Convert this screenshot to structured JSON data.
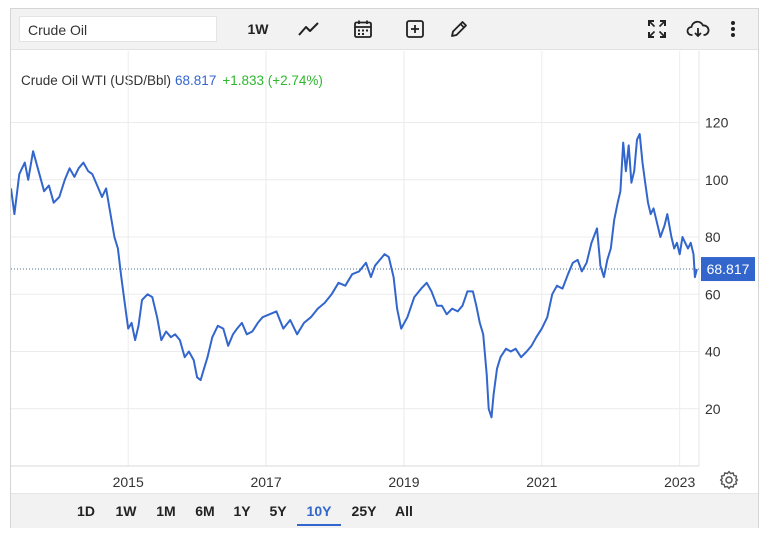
{
  "toolbar": {
    "symbol_value": "Crude Oil",
    "interval_label": "1W",
    "icons": [
      "line-chart-icon",
      "calendar-icon",
      "add-indicator-icon",
      "draw-pencil-icon",
      "fullscreen-icon",
      "cloud-download-icon",
      "more-vertical-icon"
    ]
  },
  "legend": {
    "name": "Crude Oil WTI (USD/Bbl)",
    "price": "68.817",
    "change": "+1.833 (+2.74%)"
  },
  "price_tag": "68.817",
  "range_buttons": [
    "1D",
    "1W",
    "1M",
    "6M",
    "1Y",
    "5Y",
    "10Y",
    "25Y",
    "All"
  ],
  "active_range": "10Y",
  "colors": {
    "line": "#3366cc",
    "positive": "#2eb82e",
    "accent": "#3366cc"
  },
  "chart_data": {
    "type": "line",
    "title": "Crude Oil WTI (USD/Bbl)",
    "xlabel": "",
    "ylabel": "",
    "x_range": [
      2013.3,
      2023.28
    ],
    "ylim": [
      0,
      145
    ],
    "y_ticks": [
      20,
      40,
      60,
      80,
      100,
      120
    ],
    "x_ticks": [
      {
        "label": "2015",
        "value": 2015.0
      },
      {
        "label": "2017",
        "value": 2017.0
      },
      {
        "label": "2019",
        "value": 2019.0
      },
      {
        "label": "2021",
        "value": 2021.0
      },
      {
        "label": "2023",
        "value": 2023.0
      }
    ],
    "grid": true,
    "last_value": 68.817,
    "series": [
      {
        "name": "",
        "x": [
          2013.3,
          2013.35,
          2013.42,
          2013.5,
          2013.55,
          2013.62,
          2013.7,
          2013.78,
          2013.85,
          2013.92,
          2014.0,
          2014.08,
          2014.15,
          2014.22,
          2014.28,
          2014.35,
          2014.42,
          2014.48,
          2014.55,
          2014.62,
          2014.68,
          2014.75,
          2014.8,
          2014.85,
          2014.9,
          2014.95,
          2015.0,
          2015.05,
          2015.1,
          2015.15,
          2015.2,
          2015.28,
          2015.35,
          2015.42,
          2015.48,
          2015.55,
          2015.62,
          2015.68,
          2015.75,
          2015.82,
          2015.88,
          2015.95,
          2016.0,
          2016.05,
          2016.1,
          2016.15,
          2016.22,
          2016.3,
          2016.38,
          2016.45,
          2016.52,
          2016.58,
          2016.65,
          2016.72,
          2016.8,
          2016.88,
          2016.95,
          2017.05,
          2017.15,
          2017.25,
          2017.35,
          2017.45,
          2017.55,
          2017.65,
          2017.75,
          2017.85,
          2017.95,
          2018.05,
          2018.15,
          2018.25,
          2018.35,
          2018.45,
          2018.52,
          2018.58,
          2018.65,
          2018.72,
          2018.78,
          2018.85,
          2018.9,
          2018.96,
          2019.05,
          2019.15,
          2019.25,
          2019.33,
          2019.4,
          2019.48,
          2019.55,
          2019.62,
          2019.7,
          2019.78,
          2019.85,
          2019.92,
          2020.0,
          2020.05,
          2020.1,
          2020.15,
          2020.2,
          2020.23,
          2020.27,
          2020.3,
          2020.35,
          2020.4,
          2020.48,
          2020.55,
          2020.62,
          2020.7,
          2020.78,
          2020.85,
          2020.92,
          2021.0,
          2021.08,
          2021.15,
          2021.22,
          2021.3,
          2021.38,
          2021.45,
          2021.52,
          2021.58,
          2021.65,
          2021.72,
          2021.8,
          2021.85,
          2021.9,
          2021.95,
          2022.0,
          2022.05,
          2022.1,
          2022.14,
          2022.18,
          2022.22,
          2022.26,
          2022.3,
          2022.34,
          2022.38,
          2022.42,
          2022.46,
          2022.5,
          2022.54,
          2022.58,
          2022.62,
          2022.66,
          2022.72,
          2022.78,
          2022.82,
          2022.88,
          2022.92,
          2022.96,
          2023.0,
          2023.04,
          2023.08,
          2023.12,
          2023.16,
          2023.2,
          2023.22,
          2023.25
        ],
        "y": [
          97,
          88,
          102,
          106,
          100,
          110,
          103,
          96,
          98,
          92,
          94,
          100,
          104,
          101,
          104,
          106,
          103,
          102,
          98,
          94,
          97,
          87,
          80,
          76,
          66,
          57,
          48,
          50,
          44,
          49,
          58,
          60,
          59,
          52,
          44,
          47,
          45,
          46,
          44,
          38,
          40,
          37,
          31,
          30,
          34,
          38,
          45,
          49,
          48,
          42,
          46,
          48,
          50,
          46,
          47,
          50,
          52,
          53,
          54,
          48,
          51,
          46,
          50,
          52,
          55,
          57,
          60,
          64,
          63,
          67,
          68,
          71,
          66,
          70,
          72,
          74,
          73,
          66,
          55,
          48,
          52,
          59,
          62,
          64,
          61,
          56,
          56,
          53,
          55,
          54,
          56,
          61,
          61,
          56,
          50,
          46,
          32,
          20,
          17,
          25,
          34,
          38,
          41,
          40,
          41,
          38,
          40,
          42,
          45,
          48,
          52,
          60,
          63,
          62,
          67,
          71,
          72,
          68,
          71,
          78,
          83,
          70,
          66,
          72,
          76,
          86,
          92,
          96,
          113,
          103,
          112,
          99,
          103,
          114,
          116,
          106,
          99,
          92,
          88,
          90,
          86,
          80,
          84,
          88,
          80,
          76,
          78,
          74,
          80,
          78,
          76,
          78,
          74,
          66,
          68.8
        ]
      }
    ]
  }
}
